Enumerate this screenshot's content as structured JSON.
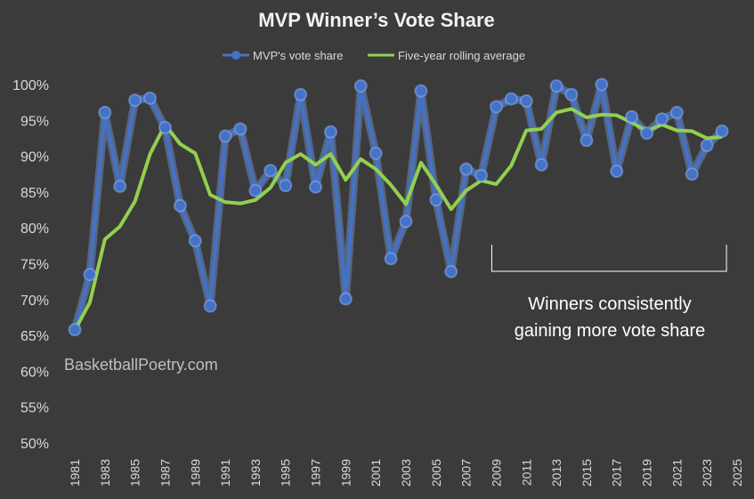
{
  "colors": {
    "background": "#3b3b3b",
    "vote_share": "#4472c4",
    "vote_share_glow": "#8fb4ff",
    "rolling_avg": "#92d050",
    "text": "#d9d9d9",
    "annotation": "#ffffff"
  },
  "chart_data": {
    "type": "line",
    "title": "MVP Winner’s Vote Share",
    "xlabel": "",
    "ylabel": "",
    "ylim": [
      0.5,
      1.0
    ],
    "yticks": [
      "50%",
      "55%",
      "60%",
      "65%",
      "70%",
      "75%",
      "80%",
      "85%",
      "90%",
      "95%",
      "100%"
    ],
    "xlim": [
      1981,
      2025
    ],
    "xticks": [
      "1981",
      "1983",
      "1985",
      "1987",
      "1989",
      "1991",
      "1993",
      "1995",
      "1997",
      "1999",
      "2001",
      "2003",
      "2005",
      "2007",
      "2009",
      "2011",
      "2013",
      "2015",
      "2017",
      "2019",
      "2021",
      "2023",
      "2025"
    ],
    "legend_position": "top",
    "grid": false,
    "series": [
      {
        "name": "MVP's vote share",
        "style": "line-markers",
        "x": [
          1981,
          1982,
          1983,
          1984,
          1985,
          1986,
          1987,
          1988,
          1989,
          1990,
          1991,
          1992,
          1993,
          1994,
          1995,
          1996,
          1997,
          1998,
          1999,
          2000,
          2001,
          2002,
          2003,
          2004,
          2005,
          2006,
          2007,
          2008,
          2009,
          2010,
          2011,
          2012,
          2013,
          2014,
          2015,
          2016,
          2017,
          2018,
          2019,
          2020,
          2021,
          2022,
          2023,
          2024
        ],
        "values": [
          0.658,
          0.735,
          0.961,
          0.858,
          0.978,
          0.981,
          0.94,
          0.831,
          0.782,
          0.691,
          0.928,
          0.938,
          0.852,
          0.88,
          0.859,
          0.986,
          0.857,
          0.934,
          0.701,
          0.998,
          0.904,
          0.757,
          0.809,
          0.991,
          0.839,
          0.739,
          0.882,
          0.873,
          0.969,
          0.98,
          0.977,
          0.888,
          0.998,
          0.986,
          0.922,
          1.0,
          0.879,
          0.955,
          0.932,
          0.952,
          0.961,
          0.875,
          0.915,
          0.935
        ]
      },
      {
        "name": "Five-year rolling average",
        "style": "line",
        "x": [
          1981,
          1982,
          1983,
          1984,
          1985,
          1986,
          1987,
          1988,
          1989,
          1990,
          1991,
          1992,
          1993,
          1994,
          1995,
          1996,
          1997,
          1998,
          1999,
          2000,
          2001,
          2002,
          2003,
          2004,
          2005,
          2006,
          2007,
          2008,
          2009,
          2010,
          2011,
          2012,
          2013,
          2014,
          2015,
          2016,
          2017,
          2018,
          2019,
          2020,
          2021,
          2022,
          2023,
          2024
        ],
        "values": [
          0.657,
          0.696,
          0.784,
          0.802,
          0.837,
          0.903,
          0.944,
          0.917,
          0.904,
          0.846,
          0.836,
          0.834,
          0.839,
          0.856,
          0.891,
          0.903,
          0.888,
          0.903,
          0.867,
          0.896,
          0.882,
          0.86,
          0.833,
          0.891,
          0.86,
          0.826,
          0.852,
          0.866,
          0.861,
          0.887,
          0.936,
          0.938,
          0.961,
          0.966,
          0.954,
          0.958,
          0.957,
          0.947,
          0.935,
          0.944,
          0.936,
          0.935,
          0.925,
          0.927
        ]
      }
    ],
    "annotations": [
      {
        "text_lines": [
          "Winners consistently",
          "gaining more vote share"
        ],
        "bracket_from_x": 2009,
        "bracket_to_x": 2024
      }
    ],
    "watermark": "BasketballPoetry.com"
  }
}
